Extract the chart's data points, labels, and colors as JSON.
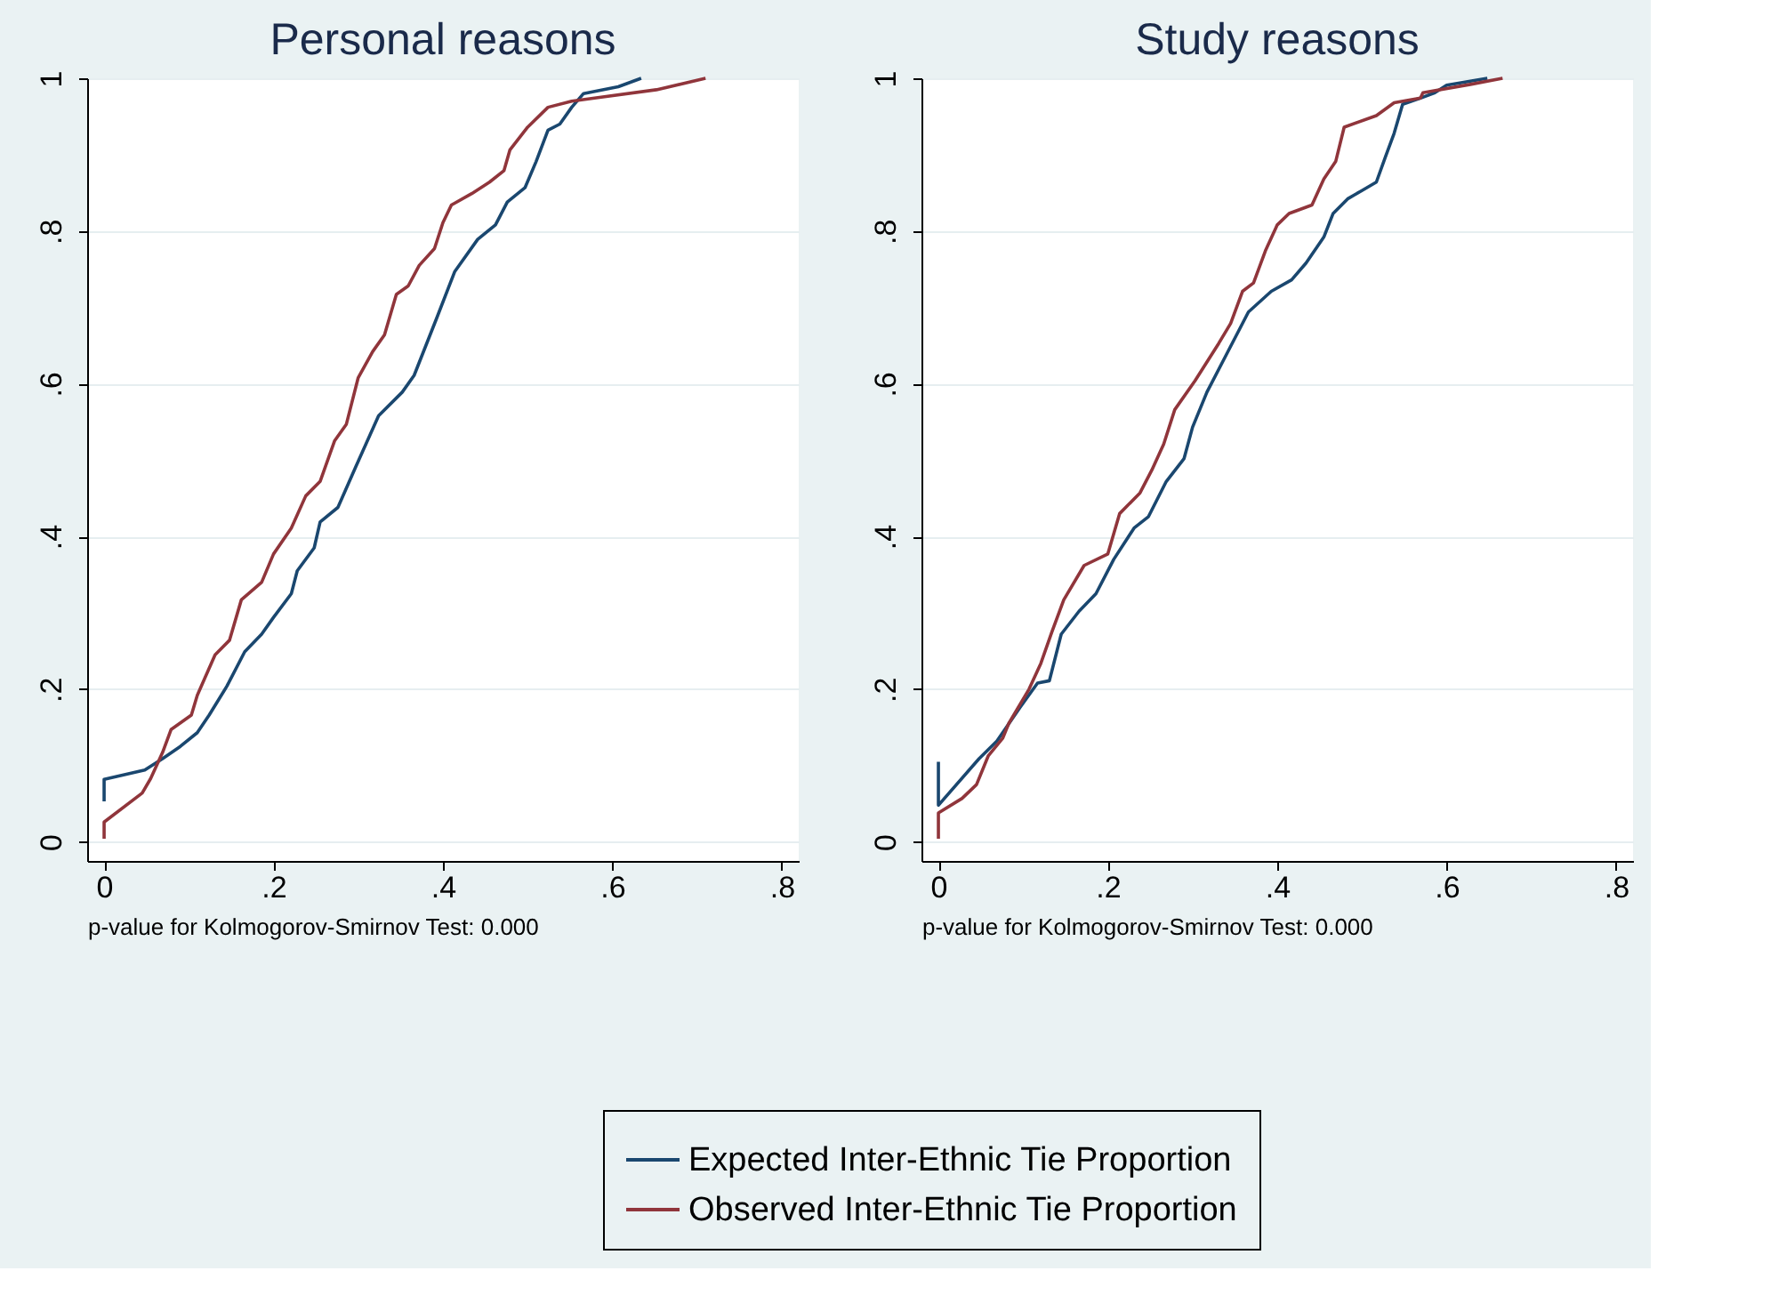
{
  "chart_data": [
    {
      "type": "line",
      "title": "Personal reasons",
      "annotations": [
        "p-value for Kolmogorov-Smirnov Test: 0.000"
      ],
      "xlim": [
        -0.02,
        0.82
      ],
      "ylim": [
        -0.025,
        1.0
      ],
      "xticks": [
        0,
        {
          "value": 0.2,
          "label": ".2"
        },
        {
          "value": 0.4,
          "label": ".4"
        },
        {
          "value": 0.6,
          "label": ".6"
        },
        {
          "value": 0.8,
          "label": ".8"
        }
      ],
      "yticks": [
        0,
        {
          "value": 0.2,
          "label": ".2"
        },
        {
          "value": 0.4,
          "label": ".4"
        },
        {
          "value": 0.6,
          "label": ".6"
        },
        {
          "value": 0.8,
          "label": ".8"
        },
        1
      ],
      "grid": "y",
      "legend": "bottom",
      "line_style": "solid",
      "series": [
        {
          "name": "Expected Inter-Ethnic Tie Proportion",
          "color": "#1a476f",
          "x": [
            0,
            0,
            0.048,
            0.069,
            0.09,
            0.11,
            0.124,
            0.145,
            0.166,
            0.186,
            0.2,
            0.221,
            0.228,
            0.248,
            0.255,
            0.276,
            0.297,
            0.324,
            0.352,
            0.366,
            0.393,
            0.414,
            0.441,
            0.462,
            0.476,
            0.497,
            0.51,
            0.524,
            0.538,
            0.552,
            0.566,
            0.607,
            0.634
          ],
          "values": [
            0.053,
            0.082,
            0.094,
            0.109,
            0.125,
            0.143,
            0.166,
            0.204,
            0.249,
            0.272,
            0.294,
            0.325,
            0.355,
            0.385,
            0.419,
            0.438,
            0.491,
            0.558,
            0.589,
            0.611,
            0.687,
            0.747,
            0.789,
            0.808,
            0.838,
            0.857,
            0.891,
            0.932,
            0.94,
            0.962,
            0.98,
            0.989,
            1.0
          ]
        },
        {
          "name": "Observed Inter-Ethnic Tie Proportion",
          "color": "#90353b",
          "x": [
            0,
            0,
            0.045,
            0.055,
            0.069,
            0.079,
            0.103,
            0.11,
            0.131,
            0.148,
            0.162,
            0.186,
            0.2,
            0.221,
            0.238,
            0.255,
            0.272,
            0.286,
            0.3,
            0.317,
            0.331,
            0.345,
            0.359,
            0.372,
            0.39,
            0.4,
            0.41,
            0.434,
            0.455,
            0.472,
            0.479,
            0.5,
            0.524,
            0.552,
            0.579,
            0.652,
            0.71
          ],
          "values": [
            0.004,
            0.026,
            0.064,
            0.083,
            0.117,
            0.147,
            0.166,
            0.192,
            0.245,
            0.264,
            0.317,
            0.34,
            0.377,
            0.411,
            0.453,
            0.472,
            0.525,
            0.547,
            0.608,
            0.642,
            0.664,
            0.717,
            0.728,
            0.755,
            0.777,
            0.811,
            0.834,
            0.849,
            0.864,
            0.879,
            0.906,
            0.936,
            0.962,
            0.97,
            0.974,
            0.985,
            1.0
          ]
        }
      ]
    },
    {
      "type": "line",
      "title": "Study reasons",
      "annotations": [
        "p-value for Kolmogorov-Smirnov Test: 0.000"
      ],
      "xlim": [
        -0.02,
        0.82
      ],
      "ylim": [
        -0.025,
        1.0
      ],
      "xticks": [
        0,
        {
          "value": 0.2,
          "label": ".2"
        },
        {
          "value": 0.4,
          "label": ".4"
        },
        {
          "value": 0.6,
          "label": ".6"
        },
        {
          "value": 0.8,
          "label": ".8"
        }
      ],
      "yticks": [
        0,
        {
          "value": 0.2,
          "label": ".2"
        },
        {
          "value": 0.4,
          "label": ".4"
        },
        {
          "value": 0.6,
          "label": ".6"
        },
        {
          "value": 0.8,
          "label": ".8"
        },
        1
      ],
      "grid": "y",
      "legend": "bottom",
      "line_style": "solid",
      "series": [
        {
          "name": "Expected Inter-Ethnic Tie Proportion",
          "color": "#1a476f",
          "x": [
            0,
            0,
            0.048,
            0.069,
            0.097,
            0.117,
            0.131,
            0.145,
            0.166,
            0.186,
            0.207,
            0.231,
            0.248,
            0.269,
            0.29,
            0.3,
            0.317,
            0.338,
            0.366,
            0.393,
            0.417,
            0.434,
            0.455,
            0.466,
            0.483,
            0.5,
            0.517,
            0.528,
            0.538,
            0.548,
            0.569,
            0.586,
            0.6,
            0.648
          ],
          "values": [
            0.105,
            0.048,
            0.109,
            0.132,
            0.177,
            0.208,
            0.211,
            0.272,
            0.302,
            0.325,
            0.37,
            0.411,
            0.426,
            0.472,
            0.502,
            0.543,
            0.589,
            0.634,
            0.694,
            0.721,
            0.736,
            0.758,
            0.792,
            0.823,
            0.842,
            0.853,
            0.864,
            0.898,
            0.928,
            0.966,
            0.974,
            0.981,
            0.991,
            1.0
          ]
        },
        {
          "name": "Observed Inter-Ethnic Tie Proportion",
          "color": "#90353b",
          "x": [
            0,
            0,
            0.028,
            0.045,
            0.059,
            0.076,
            0.083,
            0.107,
            0.121,
            0.134,
            0.148,
            0.172,
            0.2,
            0.214,
            0.238,
            0.252,
            0.266,
            0.279,
            0.303,
            0.331,
            0.345,
            0.359,
            0.372,
            0.386,
            0.4,
            0.414,
            0.441,
            0.455,
            0.469,
            0.479,
            0.517,
            0.538,
            0.569,
            0.572,
            0.628,
            0.666
          ],
          "values": [
            0.004,
            0.038,
            0.057,
            0.075,
            0.113,
            0.136,
            0.155,
            0.2,
            0.234,
            0.275,
            0.317,
            0.362,
            0.377,
            0.43,
            0.457,
            0.487,
            0.521,
            0.566,
            0.604,
            0.653,
            0.679,
            0.721,
            0.732,
            0.774,
            0.808,
            0.823,
            0.834,
            0.868,
            0.891,
            0.936,
            0.951,
            0.968,
            0.974,
            0.981,
            0.992,
            1.0
          ]
        }
      ]
    }
  ]
}
